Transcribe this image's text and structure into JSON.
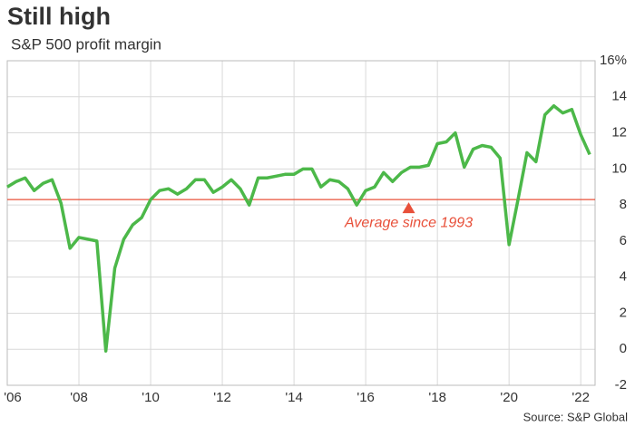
{
  "chart_data": {
    "type": "line",
    "title": "Still high",
    "subtitle": "S&P 500 profit margin",
    "source": "Source: S&P Global",
    "x": [
      2006,
      2006.25,
      2006.5,
      2006.75,
      2007,
      2007.25,
      2007.5,
      2007.75,
      2008,
      2008.25,
      2008.5,
      2008.75,
      2009,
      2009.25,
      2009.5,
      2009.75,
      2010,
      2010.25,
      2010.5,
      2010.75,
      2011,
      2011.25,
      2011.5,
      2011.75,
      2012,
      2012.25,
      2012.5,
      2012.75,
      2013,
      2013.25,
      2013.5,
      2013.75,
      2014,
      2014.25,
      2014.5,
      2014.75,
      2015,
      2015.25,
      2015.5,
      2015.75,
      2016,
      2016.25,
      2016.5,
      2016.75,
      2017,
      2017.25,
      2017.5,
      2017.75,
      2018,
      2018.25,
      2018.5,
      2018.75,
      2019,
      2019.25,
      2019.5,
      2019.75,
      2020,
      2020.25,
      2020.5,
      2020.75,
      2021,
      2021.25,
      2021.5,
      2021.75,
      2022,
      2022.25
    ],
    "series": [
      {
        "name": "S&P 500 profit margin",
        "color": "#4cb849",
        "values": [
          9.0,
          9.3,
          9.5,
          8.8,
          9.2,
          9.4,
          8.1,
          5.6,
          6.2,
          6.1,
          6.0,
          -0.1,
          4.5,
          6.1,
          6.9,
          7.3,
          8.3,
          8.8,
          8.9,
          8.6,
          8.9,
          9.4,
          9.4,
          8.7,
          9.0,
          9.4,
          8.9,
          8.0,
          9.5,
          9.5,
          9.6,
          9.7,
          9.7,
          10.0,
          10.0,
          9.0,
          9.4,
          9.3,
          8.9,
          8.0,
          8.8,
          9.0,
          9.8,
          9.3,
          9.8,
          10.1,
          10.1,
          10.2,
          11.4,
          11.5,
          12.0,
          10.1,
          11.1,
          11.3,
          11.2,
          10.6,
          5.8,
          8.3,
          10.9,
          10.4,
          13.0,
          13.5,
          13.1,
          13.3,
          11.9,
          10.8
        ]
      }
    ],
    "average": {
      "value": 8.3,
      "color": "#e8503a",
      "label": "Average since 1993",
      "x": 2017.2
    },
    "xlim": [
      2006,
      2022.4
    ],
    "xticks": [
      {
        "value": 2006,
        "label": "'06"
      },
      {
        "value": 2008,
        "label": "'08"
      },
      {
        "value": 2010,
        "label": "'10"
      },
      {
        "value": 2012,
        "label": "'12"
      },
      {
        "value": 2014,
        "label": "'14"
      },
      {
        "value": 2016,
        "label": "'16"
      },
      {
        "value": 2018,
        "label": "'18"
      },
      {
        "value": 2020,
        "label": "'20"
      },
      {
        "value": 2022,
        "label": "'22"
      }
    ],
    "ylim": [
      -2,
      16
    ],
    "yticks": [
      -2,
      0,
      2,
      4,
      6,
      8,
      10,
      12,
      14,
      {
        "value": 16,
        "label": "16%"
      }
    ],
    "grid": true
  }
}
